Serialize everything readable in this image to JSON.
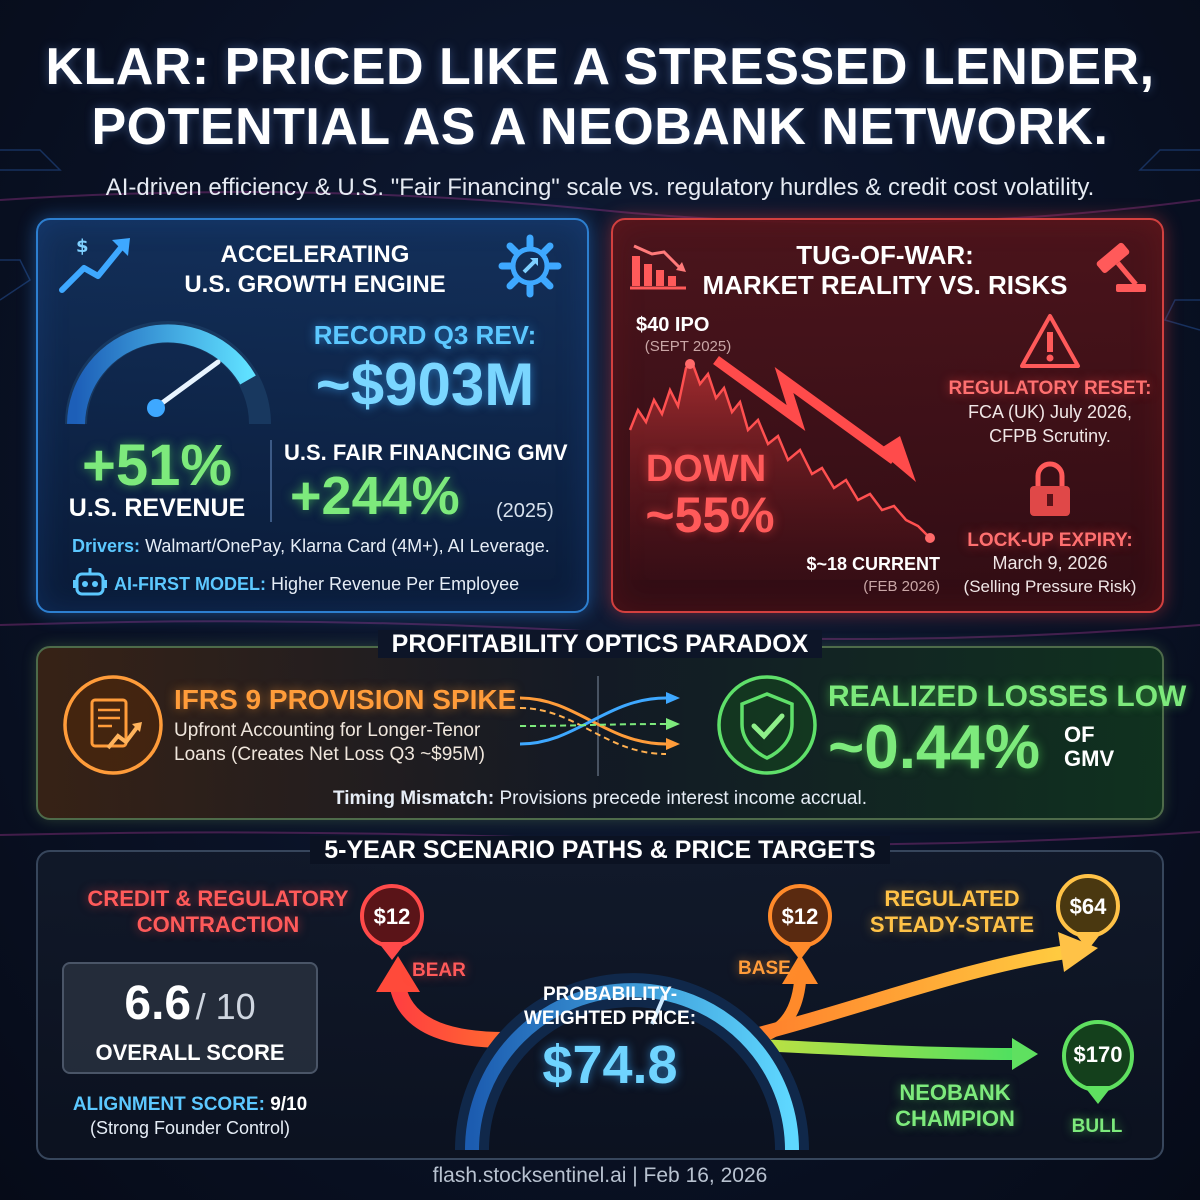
{
  "header": {
    "title_line1": "KLAR: PRICED LIKE A STRESSED LENDER,",
    "title_line2": "POTENTIAL AS A NEOBANK NETWORK.",
    "subtitle": "AI-driven efficiency & U.S. \"Fair Financing\" scale vs. regulatory hurdles & credit cost volatility."
  },
  "growth": {
    "title_line1": "ACCELERATING",
    "title_line2": "U.S. GROWTH ENGINE",
    "record_label": "RECORD Q3 REV:",
    "record_value": "~$903M",
    "us_revenue_value": "+51%",
    "us_revenue_label": "U.S. REVENUE",
    "gmv_label": "U.S. FAIR FINANCING GMV",
    "gmv_value": "+244%",
    "gmv_year": "(2025)",
    "drivers_label": "Drivers:",
    "drivers_text": "Walmart/OnePay, Klarna Card (4M+), AI Leverage.",
    "ai_label": "AI-FIRST MODEL:",
    "ai_text": "Higher Revenue Per Employee",
    "icons": [
      "growth-arrow-icon",
      "gear-icon",
      "speedometer-icon",
      "robot-icon"
    ]
  },
  "risks": {
    "title_line1": "TUG-OF-WAR:",
    "title_line2": "MARKET REALITY VS. RISKS",
    "ipo_label": "$40 IPO",
    "ipo_date": "(SEPT 2025)",
    "down_label": "DOWN",
    "down_value": "~55%",
    "current_label": "$~18 CURRENT",
    "current_date": "(FEB 2026)",
    "reg_title": "REGULATORY RESET:",
    "reg_line1": "FCA (UK) July 2026,",
    "reg_line2": "CFPB Scrutiny.",
    "lock_title": "LOCK-UP EXPIRY:",
    "lock_line1": "March 9, 2026",
    "lock_line2": "(Selling Pressure Risk)",
    "icons": [
      "bar-chart-down-icon",
      "gavel-icon",
      "warning-icon",
      "lock-icon"
    ]
  },
  "profitability": {
    "title": "PROFITABILITY OPTICS PARADOX",
    "ifrs_title": "IFRS 9 PROVISION SPIKE",
    "ifrs_line1": "Upfront Accounting for Longer-Tenor",
    "ifrs_line2": "Loans (Creates Net Loss Q3 ~$95M)",
    "realized_title": "REALIZED LOSSES LOW",
    "realized_value": "~0.44%",
    "realized_of": "OF",
    "realized_gmv": "GMV",
    "timing_label": "Timing Mismatch:",
    "timing_text": "Provisions precede interest income accrual.",
    "icons": [
      "document-chart-icon",
      "shield-check-icon"
    ]
  },
  "scenarios": {
    "title": "5-YEAR SCENARIO PATHS & PRICE TARGETS",
    "bear_title_line1": "CREDIT & REGULATORY",
    "bear_title_line2": "CONTRACTION",
    "bear_price": "$12",
    "bear_label": "BEAR",
    "base_price": "$12",
    "base_label": "BASE",
    "steady_title_line1": "REGULATED",
    "steady_title_line2": "STEADY-STATE",
    "steady_price": "$64",
    "bull_title_line1": "NEOBANK",
    "bull_title_line2": "CHAMPION",
    "bull_price": "$170",
    "bull_label": "BULL",
    "weighted_label_line1": "PROBABILITY-",
    "weighted_label_line2": "WEIGHTED PRICE:",
    "weighted_value": "$74.8",
    "score_value": "6.6",
    "score_max": "/ 10",
    "score_label": "OVERALL SCORE",
    "alignment_label": "ALIGNMENT SCORE:",
    "alignment_value": "9/10",
    "alignment_note": "(Strong Founder Control)"
  },
  "footer": {
    "source": "flash.stocksentinel.ai | Feb 16, 2026"
  },
  "colors": {
    "blue": "#2d7fd0",
    "red": "#d2403f",
    "green": "#7dea7c",
    "orange": "#ff9c3a",
    "cyan": "#5cc8ff",
    "yellow": "#ffc247"
  }
}
